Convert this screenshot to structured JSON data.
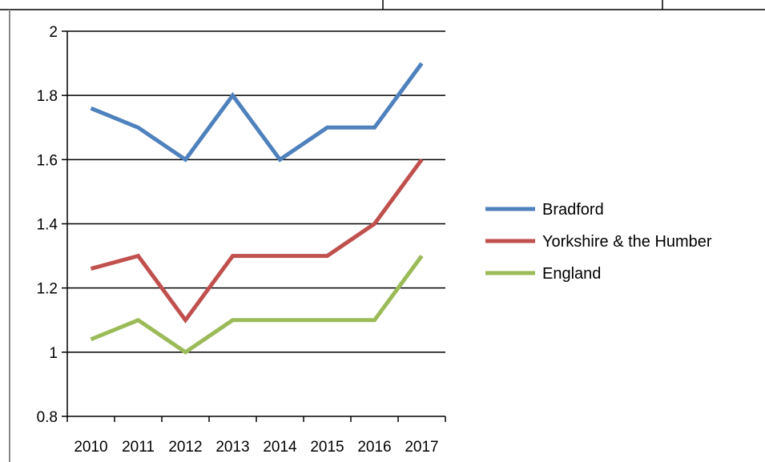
{
  "chart_data": {
    "type": "line",
    "title": "",
    "xlabel": "",
    "ylabel": "",
    "x": [
      "2010",
      "2011",
      "2012",
      "2013",
      "2014",
      "2015",
      "2016",
      "2017"
    ],
    "ylim": [
      0.8,
      2
    ],
    "yticks": [
      "0.8",
      "1",
      "1.2",
      "1.4",
      "1.6",
      "1.8",
      "2"
    ],
    "grid": true,
    "legend": "right",
    "series": [
      {
        "name": "Bradford",
        "color": "#4f81bd",
        "values": [
          1.76,
          1.7,
          1.6,
          1.8,
          1.6,
          1.7,
          1.7,
          1.9
        ]
      },
      {
        "name": "Yorkshire & the Humber",
        "color": "#c0504d",
        "values": [
          1.26,
          1.3,
          1.1,
          1.3,
          1.3,
          1.3,
          1.4,
          1.6
        ]
      },
      {
        "name": "England",
        "color": "#9bbb59",
        "values": [
          1.04,
          1.1,
          1.0,
          1.1,
          1.1,
          1.1,
          1.1,
          1.3
        ]
      }
    ]
  }
}
